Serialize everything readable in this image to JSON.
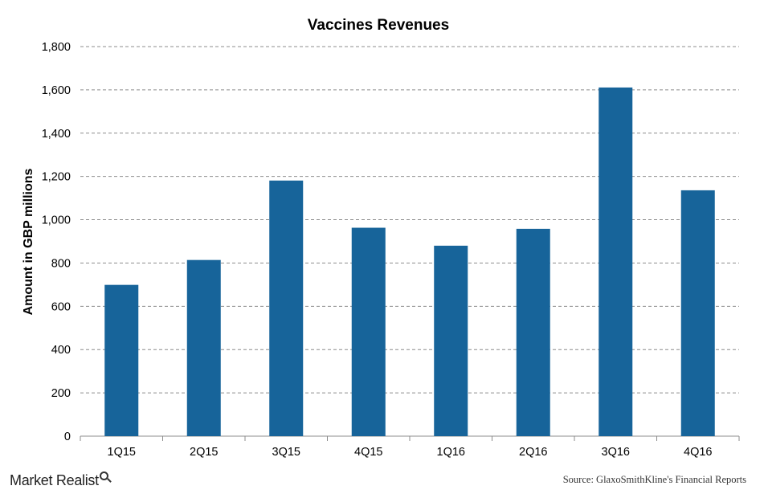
{
  "chart_data": {
    "type": "bar",
    "title": "Vaccines Revenues",
    "xlabel": "",
    "ylabel": "Amount in GBP millions",
    "categories": [
      "1Q15",
      "2Q15",
      "3Q15",
      "4Q15",
      "1Q16",
      "2Q16",
      "3Q16",
      "4Q16"
    ],
    "values": [
      699,
      814,
      1181,
      963,
      880,
      958,
      1611,
      1136
    ],
    "ylim": [
      0,
      1800
    ],
    "yticks": [
      0,
      200,
      400,
      600,
      800,
      1000,
      1200,
      1400,
      1600,
      1800
    ],
    "ytick_labels": [
      "0",
      "200",
      "400",
      "600",
      "800",
      "1,000",
      "1,200",
      "1,400",
      "1,600",
      "1,800"
    ],
    "grid": true,
    "bar_color": "#17649a"
  },
  "footer": {
    "brand": "Market Realist",
    "source": "Source: GlaxoSmithKline's Financial Reports"
  }
}
